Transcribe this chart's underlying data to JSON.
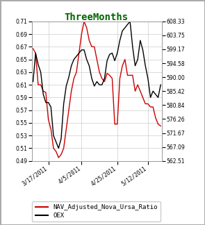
{
  "title": "ThreeMonths",
  "title_color": "#006600",
  "title_fontsize": 10,
  "title_fontweight": "bold",
  "title_fontfamily": "monospace",
  "left_ylim": [
    0.49,
    0.71
  ],
  "left_yticks": [
    0.49,
    0.51,
    0.53,
    0.55,
    0.57,
    0.59,
    0.61,
    0.63,
    0.65,
    0.67,
    0.69,
    0.71
  ],
  "right_yticks": [
    562.51,
    567.09,
    571.67,
    576.26,
    580.84,
    585.42,
    590.0,
    594.58,
    599.17,
    603.75,
    608.33
  ],
  "right_ylim": [
    562.51,
    608.33
  ],
  "xtick_labels": [
    "3/17/2011",
    "4/5/2011",
    "4/25/2011",
    "5/12/2011"
  ],
  "xtick_positions": [
    6,
    19,
    33,
    45
  ],
  "nav_color": "#cc0000",
  "oex_color": "#000000",
  "nav_label": "NAV_Adjusted_Nova_Ursa_Ratio",
  "oex_label": "OEX",
  "legend_fontfamily": "monospace",
  "legend_fontsize": 6.5,
  "background_color": "#ffffff",
  "grid_color": "#cccccc",
  "nav_data": [
    0.667,
    0.66,
    0.61,
    0.61,
    0.6,
    0.598,
    0.555,
    0.54,
    0.51,
    0.505,
    0.495,
    0.5,
    0.51,
    0.54,
    0.57,
    0.6,
    0.62,
    0.63,
    0.66,
    0.69,
    0.71,
    0.7,
    0.68,
    0.67,
    0.67,
    0.65,
    0.63,
    0.62,
    0.615,
    0.628,
    0.625,
    0.62,
    0.548,
    0.548,
    0.62,
    0.64,
    0.65,
    0.625,
    0.625,
    0.625,
    0.6,
    0.61,
    0.6,
    0.59,
    0.58,
    0.58,
    0.575,
    0.575,
    0.558,
    0.548,
    0.545
  ],
  "oex_data": [
    0.615,
    0.66,
    0.642,
    0.63,
    0.595,
    0.582,
    0.582,
    0.575,
    0.53,
    0.52,
    0.51,
    0.525,
    0.58,
    0.608,
    0.622,
    0.64,
    0.65,
    0.655,
    0.66,
    0.665,
    0.665,
    0.65,
    0.64,
    0.62,
    0.608,
    0.615,
    0.61,
    0.61,
    0.62,
    0.648,
    0.658,
    0.66,
    0.648,
    0.66,
    0.68,
    0.695,
    0.7,
    0.705,
    0.71,
    0.67,
    0.64,
    0.65,
    0.68,
    0.665,
    0.64,
    0.62,
    0.59,
    0.6,
    0.595,
    0.59,
    0.61
  ]
}
